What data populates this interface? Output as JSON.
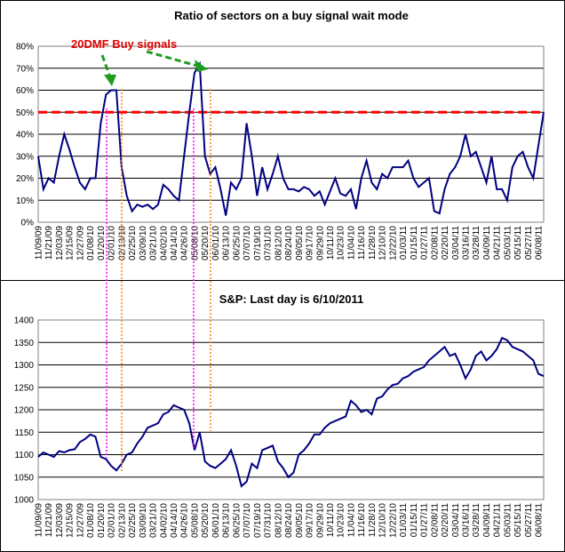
{
  "chart_data": [
    {
      "type": "line",
      "title": "Ratio of sectors on a buy signal wait mode",
      "annotation": "20DMF Buy signals",
      "categories": [
        "11/09/09",
        null,
        "11/21/09",
        null,
        "12/03/09",
        null,
        "12/15/09",
        null,
        "12/27/09",
        null,
        "01/08/10",
        null,
        "01/20/10",
        null,
        "02/01/10",
        null,
        "02/13/10",
        null,
        "02/25/10",
        null,
        "03/09/10",
        null,
        "03/21/10",
        null,
        "04/02/10",
        null,
        "04/14/10",
        null,
        "04/26/10",
        null,
        "05/08/10",
        null,
        "05/20/10",
        null,
        "06/01/10",
        null,
        "06/13/10",
        null,
        "06/25/10",
        null,
        "07/07/10",
        null,
        "07/19/10",
        null,
        "07/31/10",
        null,
        "08/12/10",
        null,
        "08/24/10",
        null,
        "09/05/10",
        null,
        "09/17/10",
        null,
        "09/29/10",
        null,
        "10/11/10",
        null,
        "10/23/10",
        null,
        "11/04/10",
        null,
        "11/16/10",
        null,
        "11/28/10",
        null,
        "12/10/10",
        null,
        "12/22/10",
        null,
        "01/03/11",
        null,
        "01/15/11",
        null,
        "01/27/11",
        null,
        "02/08/11",
        null,
        "02/20/11",
        null,
        "03/04/11",
        null,
        "03/16/11",
        null,
        "03/28/11",
        null,
        "04/09/11",
        null,
        "04/21/11",
        null,
        "05/03/11",
        null,
        "05/15/11",
        null,
        "05/27/11",
        null,
        "06/08/11",
        null
      ],
      "series": [
        {
          "color": "#000080",
          "values": [
            30,
            15,
            20,
            18,
            30,
            40,
            33,
            25,
            18,
            15,
            20,
            20,
            45,
            58,
            60,
            60,
            25,
            12,
            5,
            8,
            7,
            8,
            6,
            8,
            17,
            15,
            12,
            10,
            30,
            50,
            68,
            72,
            30,
            22,
            25,
            15,
            3,
            18,
            15,
            20,
            45,
            30,
            12,
            25,
            15,
            22,
            30,
            20,
            15,
            15,
            14,
            16,
            15,
            12,
            14,
            8,
            14,
            20,
            13,
            12,
            15,
            6,
            20,
            28,
            18,
            15,
            22,
            20,
            25,
            25,
            25,
            28,
            20,
            16,
            18,
            20,
            5,
            4,
            15,
            22,
            25,
            30,
            40,
            30,
            32,
            25,
            18,
            30,
            15,
            15,
            10,
            25,
            30,
            32,
            25,
            20,
            35,
            50
          ]
        }
      ],
      "ref_line": 50,
      "ref_color": "#ff0000",
      "ylim": [
        0,
        80
      ],
      "yticks": [
        {
          "value": 0,
          "label": "0%"
        },
        {
          "value": 10,
          "label": "10%"
        },
        {
          "value": 20,
          "label": "20%"
        },
        {
          "value": 30,
          "label": "30%"
        },
        {
          "value": 40,
          "label": "40%"
        },
        {
          "value": 50,
          "label": "50%"
        },
        {
          "value": 60,
          "label": "60%"
        },
        {
          "value": 70,
          "label": "70%"
        },
        {
          "value": 80,
          "label": "80%"
        }
      ],
      "grid": true
    },
    {
      "type": "line",
      "title": "S&P: Last day is 6/10/2011",
      "categories": [
        "11/09/09",
        null,
        "11/21/09",
        null,
        "12/03/09",
        null,
        "12/15/09",
        null,
        "12/27/09",
        null,
        "01/08/10",
        null,
        "01/20/10",
        null,
        "02/01/10",
        null,
        "02/13/10",
        null,
        "02/25/10",
        null,
        "03/09/10",
        null,
        "03/21/10",
        null,
        "04/02/10",
        null,
        "04/14/10",
        null,
        "04/26/10",
        null,
        "05/08/10",
        null,
        "05/20/10",
        null,
        "06/01/10",
        null,
        "06/13/10",
        null,
        "06/25/10",
        null,
        "07/07/10",
        null,
        "07/19/10",
        null,
        "07/31/10",
        null,
        "08/12/10",
        null,
        "08/24/10",
        null,
        "09/05/10",
        null,
        "09/17/10",
        null,
        "09/29/10",
        null,
        "10/11/10",
        null,
        "10/23/10",
        null,
        "11/04/10",
        null,
        "11/16/10",
        null,
        "11/28/10",
        null,
        "12/10/10",
        null,
        "12/22/10",
        null,
        "01/03/11",
        null,
        "01/15/11",
        null,
        "01/27/11",
        null,
        "02/08/11",
        null,
        "02/20/11",
        null,
        "03/04/11",
        null,
        "03/16/11",
        null,
        "03/28/11",
        null,
        "04/09/11",
        null,
        "04/21/11",
        null,
        "05/03/11",
        null,
        "05/15/11",
        null,
        "05/27/11",
        null,
        "06/08/11",
        null
      ],
      "series": [
        {
          "color": "#000080",
          "values": [
            1095,
            1105,
            1100,
            1095,
            1108,
            1105,
            1110,
            1112,
            1128,
            1135,
            1145,
            1140,
            1095,
            1090,
            1075,
            1065,
            1080,
            1100,
            1105,
            1125,
            1140,
            1160,
            1165,
            1170,
            1190,
            1195,
            1210,
            1205,
            1200,
            1170,
            1110,
            1150,
            1085,
            1075,
            1070,
            1080,
            1090,
            1110,
            1075,
            1030,
            1040,
            1080,
            1070,
            1110,
            1115,
            1120,
            1085,
            1070,
            1050,
            1060,
            1100,
            1110,
            1125,
            1145,
            1145,
            1160,
            1170,
            1175,
            1180,
            1185,
            1220,
            1210,
            1195,
            1200,
            1190,
            1225,
            1230,
            1245,
            1255,
            1258,
            1270,
            1275,
            1285,
            1290,
            1295,
            1310,
            1320,
            1330,
            1340,
            1320,
            1325,
            1300,
            1270,
            1290,
            1320,
            1330,
            1310,
            1320,
            1335,
            1360,
            1355,
            1340,
            1335,
            1330,
            1320,
            1310,
            1280,
            1275
          ]
        }
      ],
      "ylim": [
        1000,
        1400
      ],
      "yticks": [
        1000,
        1050,
        1100,
        1150,
        1200,
        1250,
        1300,
        1350,
        1400
      ],
      "grid": true
    }
  ]
}
